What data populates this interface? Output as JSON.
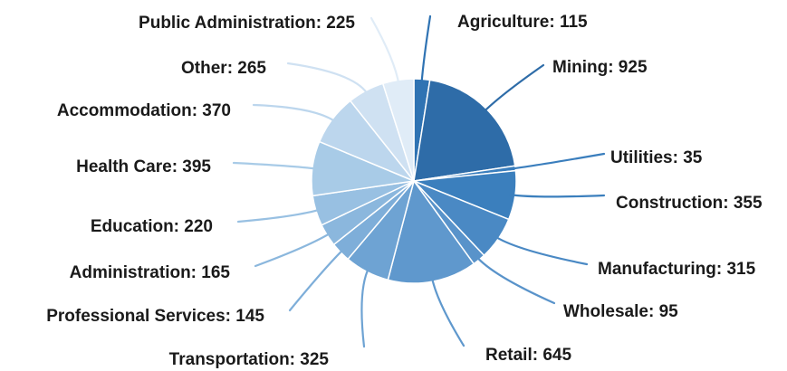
{
  "chart_data": {
    "type": "pie",
    "title": "",
    "slices": [
      {
        "label": "Agriculture",
        "value": 115,
        "color": "#2f73b3"
      },
      {
        "label": "Mining",
        "value": 925,
        "color": "#2e6ca8"
      },
      {
        "label": "Utilities",
        "value": 35,
        "color": "#3a7ebd"
      },
      {
        "label": "Construction",
        "value": 355,
        "color": "#3b7fbd"
      },
      {
        "label": "Manufacturing",
        "value": 315,
        "color": "#4a89c4"
      },
      {
        "label": "Wholesale",
        "value": 95,
        "color": "#5993ca"
      },
      {
        "label": "Retail",
        "value": 645,
        "color": "#5f98cd"
      },
      {
        "label": "Transportation",
        "value": 325,
        "color": "#6ea3d3"
      },
      {
        "label": "Professional Services",
        "value": 145,
        "color": "#7eaed9"
      },
      {
        "label": "Administration",
        "value": 165,
        "color": "#8bb7dd"
      },
      {
        "label": "Education",
        "value": 220,
        "color": "#98c0e2"
      },
      {
        "label": "Health Care",
        "value": 395,
        "color": "#a8cbe7"
      },
      {
        "label": "Accommodation",
        "value": 370,
        "color": "#bcd6ed"
      },
      {
        "label": "Other",
        "value": 265,
        "color": "#cfe1f2"
      },
      {
        "label": "Public Administration",
        "value": 225,
        "color": "#e0ecf7"
      }
    ],
    "label_format": "{label}: {value}"
  }
}
